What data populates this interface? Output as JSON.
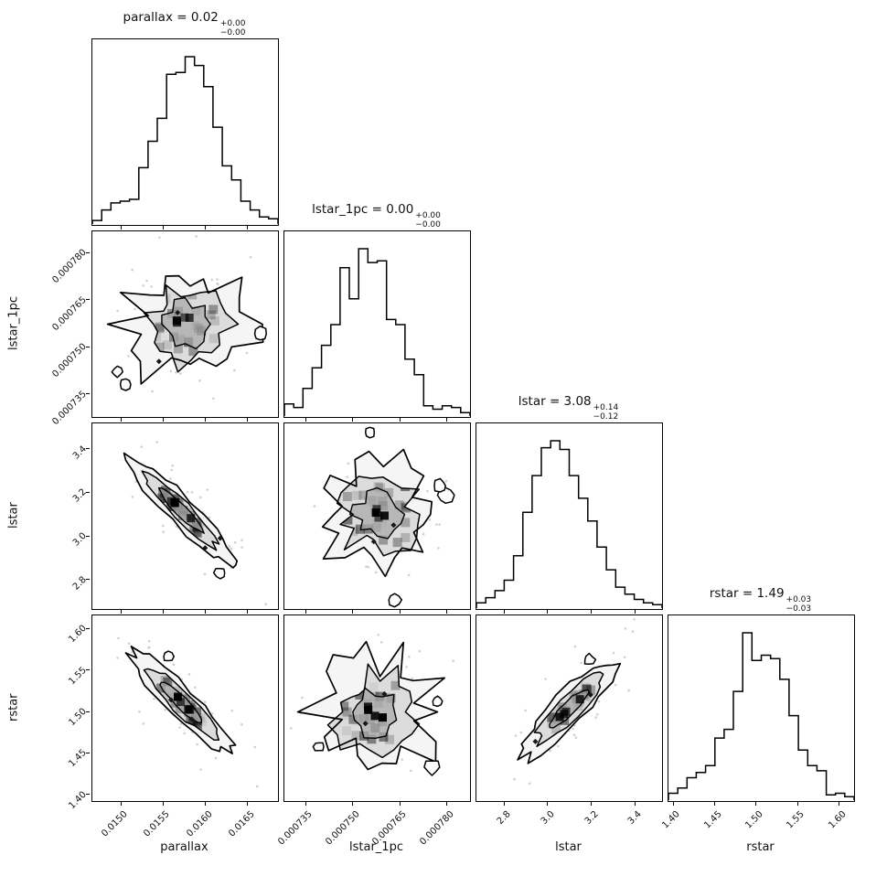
{
  "chart_data": {
    "type": "corner-plot",
    "description": "MCMC posterior corner plot: histograms on the diagonal, 2D density contours with scatter below the diagonal",
    "parameters": [
      "parallax",
      "lstar_1pc",
      "lstar",
      "rstar"
    ],
    "titles": [
      {
        "base": "parallax = 0.02",
        "plus": "+0.00",
        "minus": "−0.00"
      },
      {
        "base": "lstar_1pc = 0.00",
        "plus": "+0.00",
        "minus": "−0.00"
      },
      {
        "base": "lstar = 3.08",
        "plus": "+0.14",
        "minus": "−0.12"
      },
      {
        "base": "rstar = 1.49",
        "plus": "+0.03",
        "minus": "−0.03"
      }
    ],
    "axes": {
      "parallax": {
        "label": "parallax",
        "range": [
          0.01465,
          0.01685
        ],
        "ticks": [
          {
            "v": 0.015,
            "label": "0.0150"
          },
          {
            "v": 0.0155,
            "label": "0.0155"
          },
          {
            "v": 0.016,
            "label": "0.0160"
          },
          {
            "v": 0.0165,
            "label": "0.0165"
          }
        ]
      },
      "lstar_1pc": {
        "label": "lstar_1pc",
        "range": [
          0.000728,
          0.000787
        ],
        "ticks": [
          {
            "v": 0.000735,
            "label": "0.000735"
          },
          {
            "v": 0.00075,
            "label": "0.000750"
          },
          {
            "v": 0.000765,
            "label": "0.000765"
          },
          {
            "v": 0.00078,
            "label": "0.000780"
          }
        ]
      },
      "lstar": {
        "label": "lstar",
        "range": [
          2.67,
          3.52
        ],
        "ticks": [
          {
            "v": 2.8,
            "label": "2.8"
          },
          {
            "v": 3.0,
            "label": "3.0"
          },
          {
            "v": 3.2,
            "label": "3.2"
          },
          {
            "v": 3.4,
            "label": "3.4"
          }
        ]
      },
      "rstar": {
        "label": "rstar",
        "range": [
          1.393,
          1.617
        ],
        "ticks": [
          {
            "v": 1.4,
            "label": "1.40"
          },
          {
            "v": 1.45,
            "label": "1.45"
          },
          {
            "v": 1.5,
            "label": "1.50"
          },
          {
            "v": 1.55,
            "label": "1.55"
          },
          {
            "v": 1.6,
            "label": "1.60"
          }
        ]
      }
    },
    "histograms": {
      "parallax": {
        "bins": [
          0.02,
          0.08,
          0.12,
          0.13,
          0.14,
          0.32,
          0.47,
          0.6,
          0.85,
          0.86,
          0.95,
          0.9,
          0.78,
          0.55,
          0.33,
          0.25,
          0.13,
          0.08,
          0.04,
          0.03
        ]
      },
      "lstar_1pc": {
        "bins": [
          0.07,
          0.05,
          0.16,
          0.28,
          0.41,
          0.53,
          0.86,
          0.68,
          0.97,
          0.89,
          0.9,
          0.56,
          0.53,
          0.33,
          0.24,
          0.06,
          0.04,
          0.06,
          0.05,
          0.02
        ]
      },
      "lstar": {
        "bins": [
          0.03,
          0.06,
          0.1,
          0.16,
          0.3,
          0.55,
          0.76,
          0.92,
          0.96,
          0.91,
          0.76,
          0.63,
          0.5,
          0.35,
          0.22,
          0.12,
          0.08,
          0.05,
          0.03,
          0.02
        ]
      },
      "rstar": {
        "bins": [
          0.04,
          0.07,
          0.13,
          0.16,
          0.2,
          0.36,
          0.41,
          0.63,
          0.97,
          0.81,
          0.84,
          0.82,
          0.7,
          0.49,
          0.29,
          0.2,
          0.17,
          0.03,
          0.04,
          0.02
        ]
      }
    },
    "panel_defs": [
      {
        "name": "panel-hist-parallax",
        "type": "hist",
        "row": 0,
        "col": 0,
        "var": "parallax"
      },
      {
        "name": "panel-lstar1pc-vs-parallax",
        "type": "contour",
        "row": 1,
        "col": 0,
        "x": "parallax",
        "y": "lstar_1pc",
        "relation": "uncorrelated",
        "shape": {
          "cx": 0.5,
          "cy": 0.5,
          "rx": 0.31,
          "ry": 0.29,
          "angle": 0,
          "jag": 0.4,
          "seed": 11,
          "islands": 3
        }
      },
      {
        "name": "panel-hist-lstar1pc",
        "type": "hist",
        "row": 1,
        "col": 1,
        "var": "lstar_1pc"
      },
      {
        "name": "panel-lstar-vs-parallax",
        "type": "contour",
        "row": 2,
        "col": 0,
        "x": "parallax",
        "y": "lstar",
        "relation": "negative",
        "shape": {
          "cx": 0.48,
          "cy": 0.47,
          "rx": 0.4,
          "ry": 0.075,
          "angle": 45,
          "jag": 0.16,
          "seed": 22,
          "islands": 1
        }
      },
      {
        "name": "panel-lstar-vs-lstar1pc",
        "type": "contour",
        "row": 2,
        "col": 1,
        "x": "lstar_1pc",
        "y": "lstar",
        "relation": "uncorrelated",
        "shape": {
          "cx": 0.5,
          "cy": 0.49,
          "rx": 0.3,
          "ry": 0.28,
          "angle": 0,
          "jag": 0.42,
          "seed": 33,
          "islands": 4
        }
      },
      {
        "name": "panel-hist-lstar",
        "type": "hist",
        "row": 2,
        "col": 2,
        "var": "lstar"
      },
      {
        "name": "panel-rstar-vs-parallax",
        "type": "contour",
        "row": 3,
        "col": 0,
        "x": "parallax",
        "y": "rstar",
        "relation": "negative",
        "shape": {
          "cx": 0.48,
          "cy": 0.47,
          "rx": 0.38,
          "ry": 0.08,
          "angle": 45,
          "jag": 0.15,
          "seed": 44,
          "islands": 1
        }
      },
      {
        "name": "panel-rstar-vs-lstar1pc",
        "type": "contour",
        "row": 3,
        "col": 1,
        "x": "lstar_1pc",
        "y": "rstar",
        "relation": "uncorrelated",
        "shape": {
          "cx": 0.49,
          "cy": 0.52,
          "rx": 0.31,
          "ry": 0.29,
          "angle": 0,
          "jag": 0.44,
          "seed": 55,
          "islands": 3
        }
      },
      {
        "name": "panel-rstar-vs-lstar",
        "type": "contour",
        "row": 3,
        "col": 2,
        "x": "lstar",
        "y": "rstar",
        "relation": "positive",
        "shape": {
          "cx": 0.5,
          "cy": 0.5,
          "rx": 0.36,
          "ry": 0.09,
          "angle": -45,
          "jag": 0.18,
          "seed": 66,
          "islands": 1
        }
      },
      {
        "name": "panel-hist-rstar",
        "type": "hist",
        "row": 3,
        "col": 3,
        "var": "rstar"
      }
    ],
    "style": {
      "line": "#000000",
      "scatter": "#d0d0d0",
      "fills": [
        "#f5f5f5",
        "#dcdcdc",
        "#ababab"
      ],
      "bg": "#ffffff",
      "text": "#111111"
    }
  }
}
